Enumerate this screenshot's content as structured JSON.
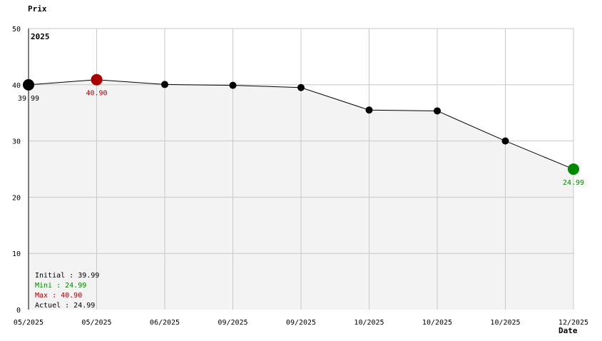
{
  "chart_data": {
    "type": "line",
    "ylabel": "Prix",
    "xlabel": "Date",
    "year_label": "2025",
    "ylim": [
      0,
      50
    ],
    "yticks": [
      "0",
      "10",
      "20",
      "30",
      "40",
      "50"
    ],
    "grid": true,
    "x_tick_labels": [
      "05/2025",
      "05/2025",
      "06/2025",
      "09/2025",
      "09/2025",
      "10/2025",
      "10/2025",
      "10/2025",
      "12/2025"
    ],
    "values": [
      39.99,
      40.9,
      40.05,
      39.9,
      39.5,
      35.5,
      35.35,
      30.0,
      24.99
    ],
    "point_labels": {
      "initial": "39.99",
      "max": "40.90",
      "min": "24.99"
    },
    "legend": {
      "initial": "Initial : 39.99",
      "mini": "Mini : 24.99",
      "max": "Max : 40.90",
      "actuel": "Actuel : 24.99"
    },
    "colors": {
      "line": "#000000",
      "point": "#000000",
      "max": "#aa0000",
      "min": "#008800",
      "fill": "#f3f3f3",
      "grid": "#c8c8c8"
    }
  }
}
